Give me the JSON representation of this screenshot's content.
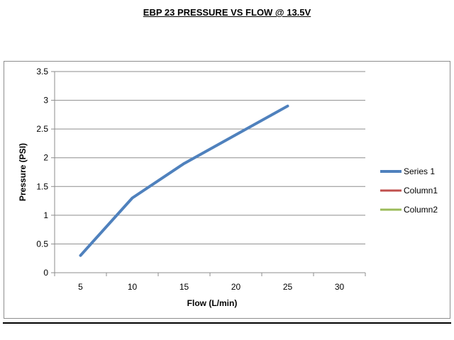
{
  "page": {
    "title": "EBP 23 PRESSURE VS FLOW @ 13.5V"
  },
  "chart_data": {
    "type": "line",
    "title": "",
    "xlabel": "Flow (L/min)",
    "ylabel": "Pressure (PSI)",
    "categories": [
      "5",
      "10",
      "15",
      "20",
      "25",
      "30"
    ],
    "x": [
      5,
      10,
      15,
      20,
      25,
      30
    ],
    "ylim": [
      0,
      3.5
    ],
    "yticks": [
      "0",
      "0.5",
      "1",
      "1.5",
      "2",
      "2.5",
      "3",
      "3.5"
    ],
    "grid": true,
    "legend_position": "right",
    "series": [
      {
        "name": "Series 1",
        "color": "#4f81bd",
        "values": [
          0.3,
          1.3,
          1.9,
          2.4,
          2.9,
          null
        ]
      },
      {
        "name": "Column1",
        "color": "#c0504d",
        "values": [
          null,
          null,
          null,
          null,
          null,
          null
        ]
      },
      {
        "name": "Column2",
        "color": "#9bbb59",
        "values": [
          null,
          null,
          null,
          null,
          null,
          null
        ]
      }
    ]
  }
}
